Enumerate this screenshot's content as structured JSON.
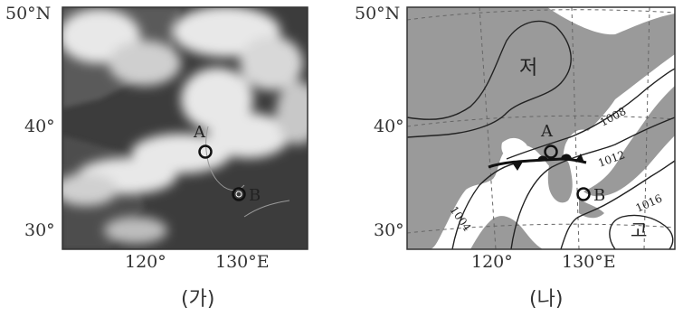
{
  "panel_a": {
    "lat_labels": [
      "50°N",
      "40°",
      "30°"
    ],
    "lon_labels": [
      "120°",
      "130°E"
    ],
    "point_a": "A",
    "point_b": "B",
    "caption": "(가)"
  },
  "panel_b": {
    "lat_labels": [
      "50°N",
      "40°",
      "30°"
    ],
    "lon_labels": [
      "120°",
      "130°E"
    ],
    "point_a": "A",
    "point_b": "B",
    "low_label": "저",
    "high_label": "고",
    "isobar_labels": [
      "1008",
      "1012",
      "1016",
      "1004"
    ],
    "caption": "(나)"
  },
  "colors": {
    "satellite_dark": "#3c3c3c",
    "land_gray": "#9a9a9a",
    "sea_white": "#ffffff",
    "isobar": "#222222"
  }
}
